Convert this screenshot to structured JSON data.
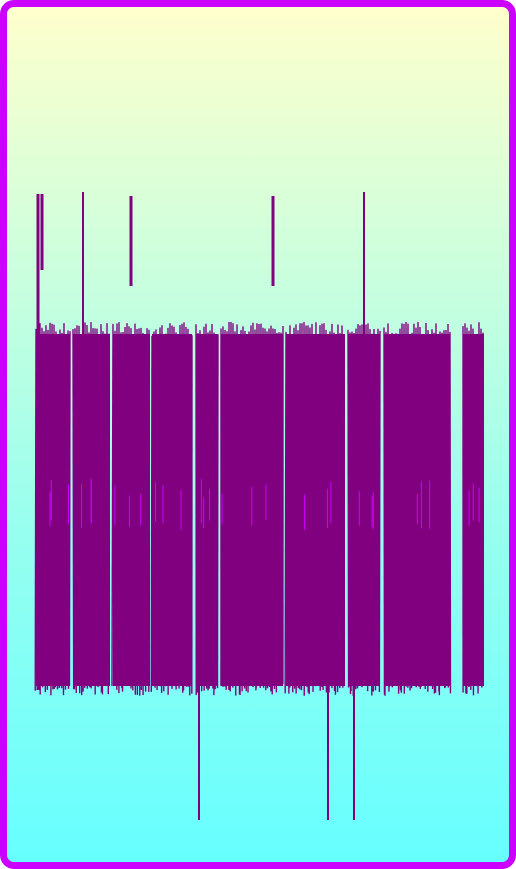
{
  "colors": {
    "frame_border": "#cc00ff",
    "gradient_top": "#ffffcc",
    "gradient_mid": "#ccffdd",
    "gradient_bottom": "#66ffff",
    "stroke": "#800080",
    "highlight": "#cc00ff"
  },
  "artwork": {
    "description_icon": "dense-vertical-stroke-pattern"
  }
}
